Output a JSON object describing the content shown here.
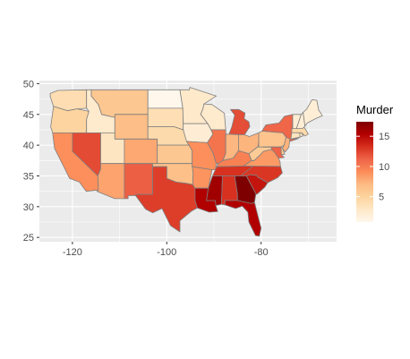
{
  "chart_data": {
    "type": "choropleth",
    "title": "",
    "xlabel": "",
    "ylabel": "",
    "x_ticks": [
      -120,
      -100,
      -80
    ],
    "y_ticks": [
      25,
      30,
      35,
      40,
      45,
      50
    ],
    "xlim": [
      -127,
      -64
    ],
    "ylim": [
      24.3,
      50.5
    ],
    "grid": true,
    "panel_background": "#ebebeb",
    "legend": {
      "title": "Murder",
      "position": "right",
      "ticks": [
        5,
        10,
        15
      ],
      "range": [
        0.8,
        17.4
      ],
      "colors": [
        "#fff7ec",
        "#fee8c8",
        "#fdd49e",
        "#fdbb84",
        "#fc8d59",
        "#ef6548",
        "#d7301f",
        "#b30000",
        "#7f0000"
      ]
    },
    "states": [
      {
        "name": "Washington",
        "value": 4.0
      },
      {
        "name": "Oregon",
        "value": 4.9
      },
      {
        "name": "California",
        "value": 9.0
      },
      {
        "name": "Idaho",
        "value": 2.6
      },
      {
        "name": "Nevada",
        "value": 12.2
      },
      {
        "name": "Utah",
        "value": 3.2
      },
      {
        "name": "Arizona",
        "value": 8.1
      },
      {
        "name": "Montana",
        "value": 6.0
      },
      {
        "name": "Wyoming",
        "value": 6.8
      },
      {
        "name": "Colorado",
        "value": 7.9
      },
      {
        "name": "New Mexico",
        "value": 11.4
      },
      {
        "name": "North Dakota",
        "value": 0.8
      },
      {
        "name": "South Dakota",
        "value": 3.8
      },
      {
        "name": "Nebraska",
        "value": 4.3
      },
      {
        "name": "Kansas",
        "value": 6.0
      },
      {
        "name": "Oklahoma",
        "value": 6.6
      },
      {
        "name": "Texas",
        "value": 12.7
      },
      {
        "name": "Minnesota",
        "value": 2.7
      },
      {
        "name": "Iowa",
        "value": 2.2
      },
      {
        "name": "Missouri",
        "value": 9.0
      },
      {
        "name": "Arkansas",
        "value": 8.8
      },
      {
        "name": "Louisiana",
        "value": 15.4
      },
      {
        "name": "Wisconsin",
        "value": 2.6
      },
      {
        "name": "Illinois",
        "value": 10.4
      },
      {
        "name": "Michigan",
        "value": 12.1
      },
      {
        "name": "Indiana",
        "value": 7.2
      },
      {
        "name": "Ohio",
        "value": 7.3
      },
      {
        "name": "Kentucky",
        "value": 9.7
      },
      {
        "name": "Tennessee",
        "value": 13.2
      },
      {
        "name": "Mississippi",
        "value": 16.1
      },
      {
        "name": "Alabama",
        "value": 13.2
      },
      {
        "name": "Georgia",
        "value": 17.4
      },
      {
        "name": "Florida",
        "value": 15.4
      },
      {
        "name": "South Carolina",
        "value": 14.4
      },
      {
        "name": "North Carolina",
        "value": 13.0
      },
      {
        "name": "Virginia",
        "value": 8.5
      },
      {
        "name": "West Virginia",
        "value": 5.7
      },
      {
        "name": "Pennsylvania",
        "value": 6.3
      },
      {
        "name": "New York",
        "value": 11.1
      },
      {
        "name": "New Jersey",
        "value": 7.4
      },
      {
        "name": "Delaware",
        "value": 5.9
      },
      {
        "name": "Maryland",
        "value": 11.3
      },
      {
        "name": "Connecticut",
        "value": 3.3
      },
      {
        "name": "Rhode Island",
        "value": 3.4
      },
      {
        "name": "Massachusetts",
        "value": 4.4
      },
      {
        "name": "Vermont",
        "value": 2.2
      },
      {
        "name": "New Hampshire",
        "value": 2.1
      },
      {
        "name": "Maine",
        "value": 2.1
      }
    ]
  }
}
